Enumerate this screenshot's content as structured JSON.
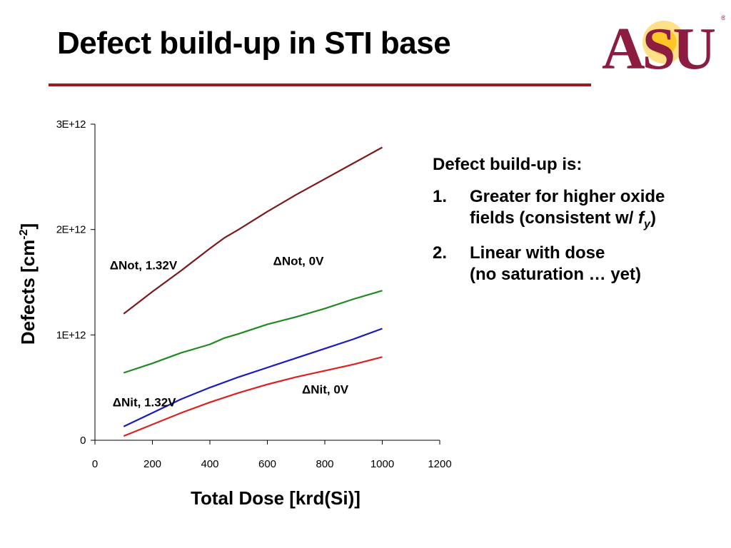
{
  "title": "Defect build-up in STI base",
  "logo": {
    "text": "ASU",
    "colors": {
      "maroon": "#8c1d40",
      "gold": "#ffc627"
    }
  },
  "accent_color": "#9a1b1b",
  "notes": {
    "heading": "Defect build-up is:",
    "items": [
      {
        "num": "1.",
        "line1": "Greater for higher oxide",
        "line2_prefix": "fields (consistent w/ ",
        "symbol": "f",
        "subscript": "y",
        "line2_suffix": ")"
      },
      {
        "num": "2.",
        "line1": "Linear with dose",
        "line2": "(no saturation … yet)"
      }
    ]
  },
  "chart_data": {
    "type": "line",
    "xlabel": "Total Dose [krd(Si)]",
    "ylabel": "Defects [cm-2]",
    "ylabel_main": "Defects [cm",
    "ylabel_sup": "-2",
    "ylabel_end": "]",
    "xlim": [
      0,
      1200
    ],
    "ylim": [
      0,
      3000000000000.0
    ],
    "x_ticks": [
      "0",
      "200",
      "400",
      "600",
      "800",
      "1000",
      "1200"
    ],
    "y_ticks": [
      "0",
      "1E+12",
      "2E+12",
      "3E+12"
    ],
    "grid": false,
    "legend": "none",
    "series": [
      {
        "name": "ΔNot, 1.32V",
        "color": "#7a1a1a",
        "x": [
          100,
          200,
          300,
          400,
          450,
          500,
          600,
          700,
          800,
          900,
          1000
        ],
        "y": [
          1200000000000.0,
          1410000000000.0,
          1610000000000.0,
          1820000000000.0,
          1920000000000.0,
          2000000000000.0,
          2170000000000.0,
          2330000000000.0,
          2480000000000.0,
          2630000000000.0,
          2780000000000.0
        ]
      },
      {
        "name": "ΔNot, 0V",
        "color": "#1f8a1f",
        "x": [
          100,
          200,
          300,
          400,
          450,
          500,
          600,
          700,
          800,
          900,
          1000
        ],
        "y": [
          640000000000.0,
          730000000000.0,
          830000000000.0,
          910000000000.0,
          970000000000.0,
          1010000000000.0,
          1100000000000.0,
          1170000000000.0,
          1250000000000.0,
          1340000000000.0,
          1420000000000.0
        ]
      },
      {
        "name": "ΔNit, 1.32V",
        "color": "#1a1ac0",
        "x": [
          100,
          200,
          300,
          400,
          500,
          600,
          700,
          800,
          900,
          1000
        ],
        "y": [
          130000000000.0,
          260000000000.0,
          390000000000.0,
          500000000000.0,
          600000000000.0,
          690000000000.0,
          780000000000.0,
          870000000000.0,
          960000000000.0,
          1060000000000.0
        ]
      },
      {
        "name": "ΔNit, 0V",
        "color": "#e02020",
        "x": [
          100,
          200,
          300,
          400,
          500,
          600,
          700,
          800,
          900,
          1000
        ],
        "y": [
          40000000000.0,
          150000000000.0,
          260000000000.0,
          360000000000.0,
          450000000000.0,
          530000000000.0,
          600000000000.0,
          660000000000.0,
          720000000000.0,
          790000000000.0
        ]
      }
    ]
  }
}
